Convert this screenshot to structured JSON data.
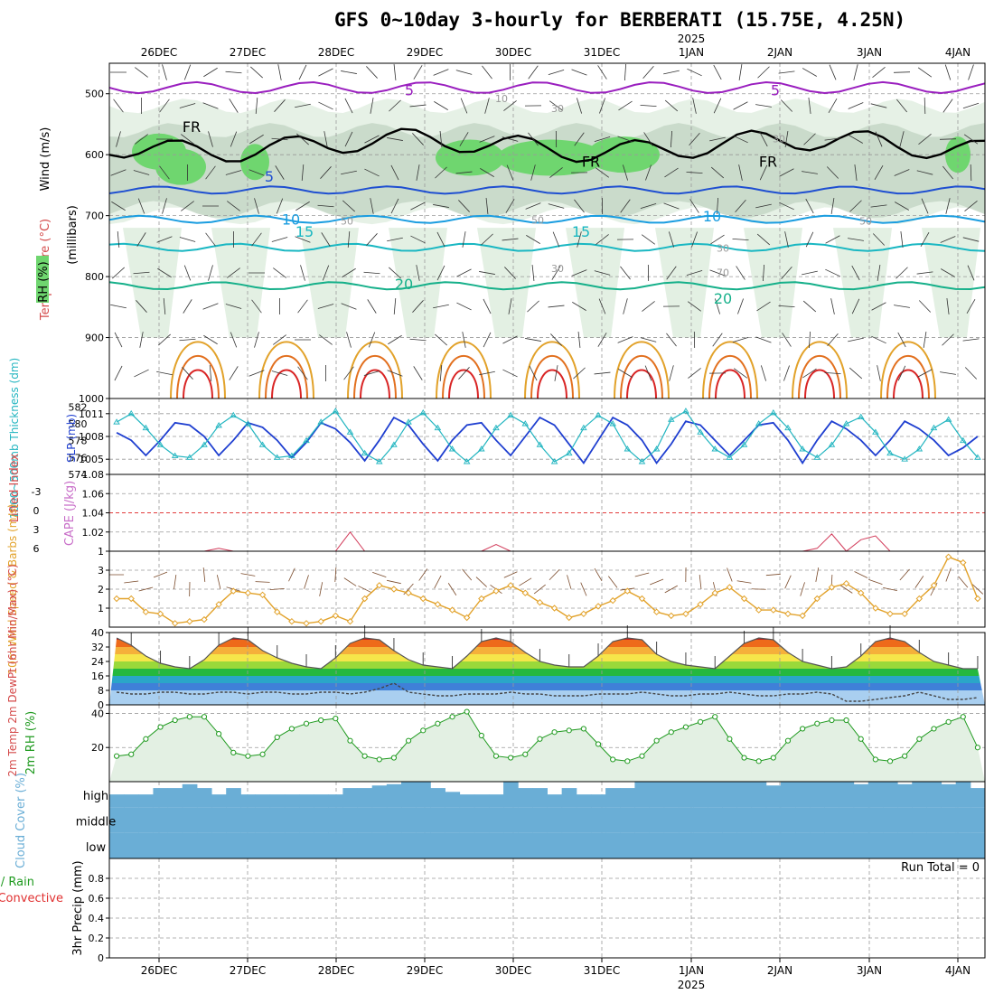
{
  "title": "GFS 0~10day 3-hourly for BERBERATI (15.75E, 4.25N)",
  "colors": {
    "freezing": "#000000",
    "iso_cold": "#9a1fbf",
    "iso_5": "#1f4fd1",
    "iso_10": "#1a9de0",
    "iso_15": "#19b7c2",
    "iso_20": "#16b08a",
    "iso_warm1": "#e2a22a",
    "iso_warm2": "#e2701f",
    "iso_warm3": "#d92525",
    "rh_light": "#e3f0e3",
    "rh_mid": "#c6d8c8",
    "rh_high": "#6fd66f",
    "slp": "#1f3fd0",
    "thickness": "#22b5c0",
    "cape": "#d23b5a",
    "wind10": "#e2a22a",
    "rh2m": "#1f9a1f",
    "cloud": "#6aaed6",
    "grid": "#9a9a9a"
  },
  "chart_data": [
    {
      "type": "line",
      "panel": "Upper-air cross section",
      "ylabel_parts": [
        "Wind (m/s)",
        "Temperature (°C)",
        "RH (%)",
        "(millibars)"
      ],
      "yticks": [
        500,
        600,
        700,
        800,
        900,
        1000
      ],
      "ylim": [
        1000,
        450
      ],
      "x_date_labels": [
        "26DEC",
        "27DEC",
        "28DEC",
        "29DEC",
        "30DEC",
        "31DEC",
        "1JAN",
        "2JAN",
        "3JAN",
        "4JAN"
      ],
      "year_label": "2025",
      "contour_labels": [
        "5",
        "5",
        "5",
        "10",
        "10",
        "15",
        "15",
        "20",
        "20",
        "FR",
        "FR",
        "FR",
        "30",
        "30",
        "30",
        "30",
        "50",
        "50",
        "50",
        "70",
        "10"
      ],
      "isotherms": [
        {
          "name": "-5 C",
          "level_mb": 490
        },
        {
          "name": "freezing level",
          "level_mb": 585
        },
        {
          "name": "5 C",
          "level_mb": 658
        },
        {
          "name": "10 C",
          "level_mb": 706
        },
        {
          "name": "15 C",
          "level_mb": 752
        },
        {
          "name": "20 C",
          "level_mb": 815
        }
      ]
    },
    {
      "type": "line",
      "panel": "SLP and 1000-500mb thickness",
      "ylabel_left": "1000~500mb Thickness (dm)",
      "ylabel_right": "SLP (mb)",
      "thickness_ticks": [
        "582",
        "580",
        "578",
        "576",
        "574"
      ],
      "slp_ticks": [
        "1011",
        "1008",
        "1005"
      ],
      "slp_ylim": [
        1003,
        1013
      ],
      "thickness_ylim": [
        574,
        583
      ],
      "series": [
        {
          "name": "SLP",
          "values": [
            1008.5,
            1007.5,
            1005.5,
            1007.5,
            1009.8,
            1009.5,
            1008.0,
            1005.5,
            1007.5,
            1009.8,
            1009.2,
            1007.5,
            1005.2,
            1007.2,
            1009.8,
            1009.0,
            1007.2,
            1004.8,
            1007.5,
            1010.5,
            1009.5,
            1007.0,
            1004.8,
            1007.5,
            1009.5,
            1009.8,
            1007.5,
            1005.5,
            1008.0,
            1010.5,
            1009.5,
            1007.0,
            1004.5,
            1007.5,
            1010.5,
            1009.5,
            1007.5,
            1004.5,
            1007.0,
            1010.0,
            1009.5,
            1007.5,
            1005.5,
            1007.5,
            1009.5,
            1009.8,
            1007.5,
            1004.5,
            1007.5,
            1010.0,
            1009.0,
            1007.5,
            1005.5,
            1007.5,
            1010.0,
            1009.0,
            1007.5,
            1005.5,
            1006.5,
            1008.0
          ]
        },
        {
          "name": "1000-500mb thickness",
          "values": [
            580.2,
            581.2,
            579.5,
            577.5,
            576.2,
            576.0,
            577.5,
            579.8,
            581.0,
            580.0,
            577.5,
            576.0,
            576.2,
            578.0,
            580.2,
            581.5,
            579.0,
            576.5,
            575.5,
            577.5,
            580.2,
            581.3,
            579.5,
            577.0,
            575.5,
            577.0,
            579.5,
            581.0,
            580.0,
            577.5,
            575.5,
            576.5,
            579.5,
            581.0,
            580.0,
            577.0,
            575.5,
            577.0,
            580.5,
            581.5,
            579.0,
            577.0,
            576.0,
            577.5,
            580.0,
            581.3,
            579.5,
            577.0,
            576.0,
            577.5,
            580.0,
            580.8,
            579.0,
            576.5,
            575.8,
            577.0,
            579.5,
            580.5,
            578.0,
            576.0
          ]
        }
      ]
    },
    {
      "type": "line",
      "panel": "CAPE and Lifted Index",
      "ylabel_left": "Lifted Index",
      "ylabel_right": "CAPE (J/kg)",
      "li_ticks": [
        "-3",
        "0",
        "3",
        "6"
      ],
      "cape_ticks": [
        "1.08",
        "1.06",
        "1.04",
        "1.02",
        "1"
      ],
      "cape_ylim": [
        1,
        1.08
      ],
      "series": [
        {
          "name": "CAPE",
          "values": [
            1,
            1,
            1,
            1,
            1,
            1,
            1,
            1.003,
            1,
            1,
            1,
            1,
            1,
            1,
            1,
            1,
            1.02,
            1,
            1,
            1,
            1,
            1,
            1,
            1,
            1,
            1,
            1.007,
            1,
            1,
            1,
            1,
            1,
            1,
            1,
            1,
            1,
            1,
            1,
            1,
            1,
            1,
            1,
            1,
            1,
            1,
            1,
            1,
            1,
            1.003,
            1.018,
            1,
            1.012,
            1.016,
            1,
            1,
            1,
            1,
            1,
            1,
            1
          ]
        }
      ]
    },
    {
      "type": "line",
      "panel": "10m Wind",
      "ylabel": "10m Wind Speed & Barbs (m/s)",
      "yticks": [
        "3",
        "2",
        "1"
      ],
      "ylim": [
        0,
        4
      ],
      "values": [
        1.5,
        1.5,
        0.8,
        0.7,
        0.2,
        0.3,
        0.4,
        1.2,
        1.9,
        1.8,
        1.7,
        0.8,
        0.3,
        0.2,
        0.3,
        0.6,
        0.3,
        1.5,
        2.2,
        2.0,
        1.8,
        1.5,
        1.2,
        0.9,
        0.5,
        1.5,
        1.9,
        2.2,
        1.8,
        1.3,
        1.0,
        0.5,
        0.7,
        1.1,
        1.4,
        1.9,
        1.5,
        0.8,
        0.6,
        0.7,
        1.2,
        1.8,
        2.1,
        1.5,
        0.9,
        0.9,
        0.7,
        0.6,
        1.5,
        2.1,
        2.3,
        1.8,
        1.0,
        0.7,
        0.7,
        1.5,
        2.2,
        3.7,
        3.4,
        1.5
      ]
    },
    {
      "type": "area",
      "panel": "2m Temperature and Dew Point",
      "ylabel": "2m Temp 2m DewPt (6hr Min/Max) (°C)",
      "yticks": [
        "40",
        "32",
        "24",
        "16",
        "8",
        "0"
      ],
      "ylim": [
        0,
        40
      ],
      "series": [
        {
          "name": "2m Temp",
          "values": [
            37,
            33,
            27,
            23,
            21,
            20,
            25,
            33,
            37,
            36,
            30,
            26,
            23,
            21,
            20,
            26,
            34,
            37,
            36,
            30,
            25,
            22,
            21,
            20,
            27,
            35,
            37,
            35,
            29,
            24,
            22,
            21,
            21,
            27,
            35,
            37,
            36,
            28,
            24,
            22,
            21,
            20,
            27,
            34,
            37,
            36,
            29,
            24,
            22,
            20,
            21,
            27,
            35,
            37,
            35,
            29,
            24,
            22,
            20,
            20
          ]
        },
        {
          "name": "2m DewPt",
          "values": [
            7,
            6,
            6,
            7,
            7,
            6,
            6,
            7,
            7,
            6,
            7,
            7,
            6,
            6,
            7,
            7,
            6,
            7,
            9,
            12,
            7,
            6,
            5,
            5,
            6,
            6,
            6,
            7,
            6,
            6,
            5,
            5,
            5,
            6,
            6,
            6,
            7,
            6,
            5,
            5,
            6,
            6,
            7,
            6,
            5,
            5,
            6,
            6,
            7,
            6,
            2,
            2,
            3,
            4,
            5,
            7,
            5,
            3,
            3,
            4
          ]
        }
      ]
    },
    {
      "type": "area",
      "panel": "2m RH",
      "ylabel": "2m RH (%)",
      "yticks": [
        "40",
        "20"
      ],
      "ylim": [
        0,
        45
      ],
      "values": [
        15,
        16,
        25,
        32,
        36,
        38,
        38,
        28,
        17,
        15,
        16,
        26,
        31,
        34,
        36,
        37,
        24,
        15,
        13,
        14,
        24,
        30,
        34,
        38,
        41,
        27,
        15,
        14,
        16,
        25,
        29,
        30,
        31,
        22,
        13,
        12,
        15,
        24,
        29,
        32,
        35,
        38,
        25,
        14,
        12,
        14,
        24,
        31,
        34,
        36,
        36,
        25,
        13,
        12,
        15,
        25,
        31,
        35,
        38,
        20
      ]
    },
    {
      "type": "bar",
      "panel": "Cloud Cover",
      "ylabel": "Cloud Cover (%)",
      "levels": [
        "high",
        "middle",
        "low"
      ],
      "series": [
        {
          "name": "high",
          "values": [
            50,
            50,
            50,
            75,
            75,
            90,
            75,
            50,
            75,
            50,
            50,
            50,
            50,
            50,
            50,
            50,
            75,
            75,
            85,
            90,
            100,
            100,
            75,
            60,
            50,
            50,
            50,
            100,
            75,
            75,
            50,
            75,
            50,
            50,
            75,
            75,
            100,
            100,
            100,
            100,
            100,
            100,
            100,
            100,
            100,
            85,
            100,
            100,
            100,
            100,
            100,
            90,
            100,
            100,
            90,
            100,
            100,
            90,
            100,
            75
          ]
        },
        {
          "name": "middle",
          "values": [
            100,
            100,
            100,
            100,
            100,
            100,
            100,
            100,
            100,
            100,
            100,
            100,
            100,
            100,
            100,
            100,
            100,
            100,
            100,
            100,
            100,
            100,
            100,
            100,
            100,
            100,
            100,
            100,
            100,
            100,
            100,
            100,
            100,
            100,
            100,
            100,
            100,
            100,
            100,
            100,
            100,
            100,
            100,
            100,
            100,
            100,
            100,
            100,
            100,
            100,
            100,
            100,
            100,
            100,
            100,
            100,
            100,
            100,
            100,
            100
          ]
        },
        {
          "name": "low",
          "values": [
            100,
            100,
            100,
            100,
            100,
            100,
            100,
            100,
            100,
            100,
            100,
            100,
            100,
            100,
            100,
            100,
            100,
            100,
            100,
            100,
            100,
            100,
            100,
            100,
            100,
            100,
            100,
            100,
            100,
            100,
            100,
            100,
            100,
            100,
            100,
            100,
            100,
            100,
            100,
            100,
            100,
            100,
            100,
            100,
            100,
            100,
            100,
            100,
            100,
            100,
            100,
            100,
            100,
            100,
            100,
            100,
            100,
            100,
            100,
            100
          ]
        }
      ]
    },
    {
      "type": "bar",
      "panel": "3hr Precipitation",
      "ylabel_parts": [
        "Total / Rain",
        "Convective",
        "3hr Precip (mm)"
      ],
      "yticks": [
        "0.8",
        "0.6",
        "0.4",
        "0.2",
        "0"
      ],
      "ylim": [
        0,
        1
      ],
      "run_total_label": "Run Total = 0",
      "values": [
        0,
        0,
        0,
        0,
        0,
        0,
        0,
        0,
        0,
        0
      ]
    }
  ]
}
